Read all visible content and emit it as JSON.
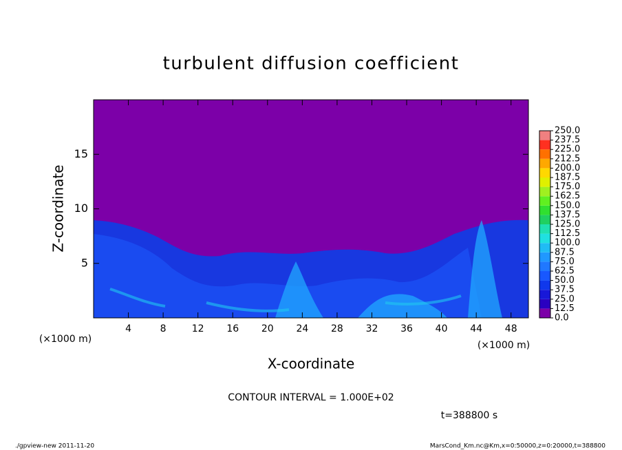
{
  "chart_data": {
    "type": "heatmap",
    "title": "turbulent diffusion coefficient",
    "x_label": "X-coordinate",
    "y_label": "Z-coordinate",
    "x_unit": "(×1000 m)",
    "xlim": [
      0,
      50
    ],
    "xticks": [
      4,
      8,
      12,
      16,
      20,
      24,
      28,
      32,
      36,
      40,
      44,
      48
    ],
    "ylim": [
      0,
      20
    ],
    "yticks": [
      5,
      10,
      15
    ],
    "colorbar": {
      "ticks": [
        {
          "value": 0,
          "label": "0.0"
        },
        {
          "value": 12.5,
          "label": "12.5"
        },
        {
          "value": 25,
          "label": "25.0"
        },
        {
          "value": 37.5,
          "label": "37.5"
        },
        {
          "value": 50,
          "label": "50.0"
        },
        {
          "value": 62.5,
          "label": "62.5"
        },
        {
          "value": 75,
          "label": "75.0"
        },
        {
          "value": 87.5,
          "label": "87.5"
        },
        {
          "value": 100,
          "label": "100.0"
        },
        {
          "value": 112.5,
          "label": "112.5"
        },
        {
          "value": 125,
          "label": "125.0"
        },
        {
          "value": 137.5,
          "label": "137.5"
        },
        {
          "value": 150,
          "label": "150.0"
        },
        {
          "value": 162.5,
          "label": "162.5"
        },
        {
          "value": 175,
          "label": "175.0"
        },
        {
          "value": 187.5,
          "label": "187.5"
        },
        {
          "value": 200,
          "label": "200.0"
        },
        {
          "value": 212.5,
          "label": "212.5"
        },
        {
          "value": 225,
          "label": "225.0"
        },
        {
          "value": 237.5,
          "label": "237.5"
        },
        {
          "value": 250,
          "label": "250.0"
        }
      ],
      "colors": [
        "#7c00a8",
        "#2a00c0",
        "#1818d8",
        "#1038ec",
        "#1858ff",
        "#2078ff",
        "#2098ff",
        "#20bcf4",
        "#20e0e0",
        "#20e0b0",
        "#20d060",
        "#30e030",
        "#60f020",
        "#a0f020",
        "#e0f000",
        "#ffd800",
        "#ffa800",
        "#ff7000",
        "#ff3020",
        "#f08080"
      ]
    },
    "contour_interval": "CONTOUR INTERVAL = 1.000E+02",
    "time": "t=388800 s",
    "footer_left": "./gpview-new   2011-11-20",
    "footer_right": "MarsCond_Km.nc@Km,x=0:50000,z=0:20000,t=388800"
  }
}
